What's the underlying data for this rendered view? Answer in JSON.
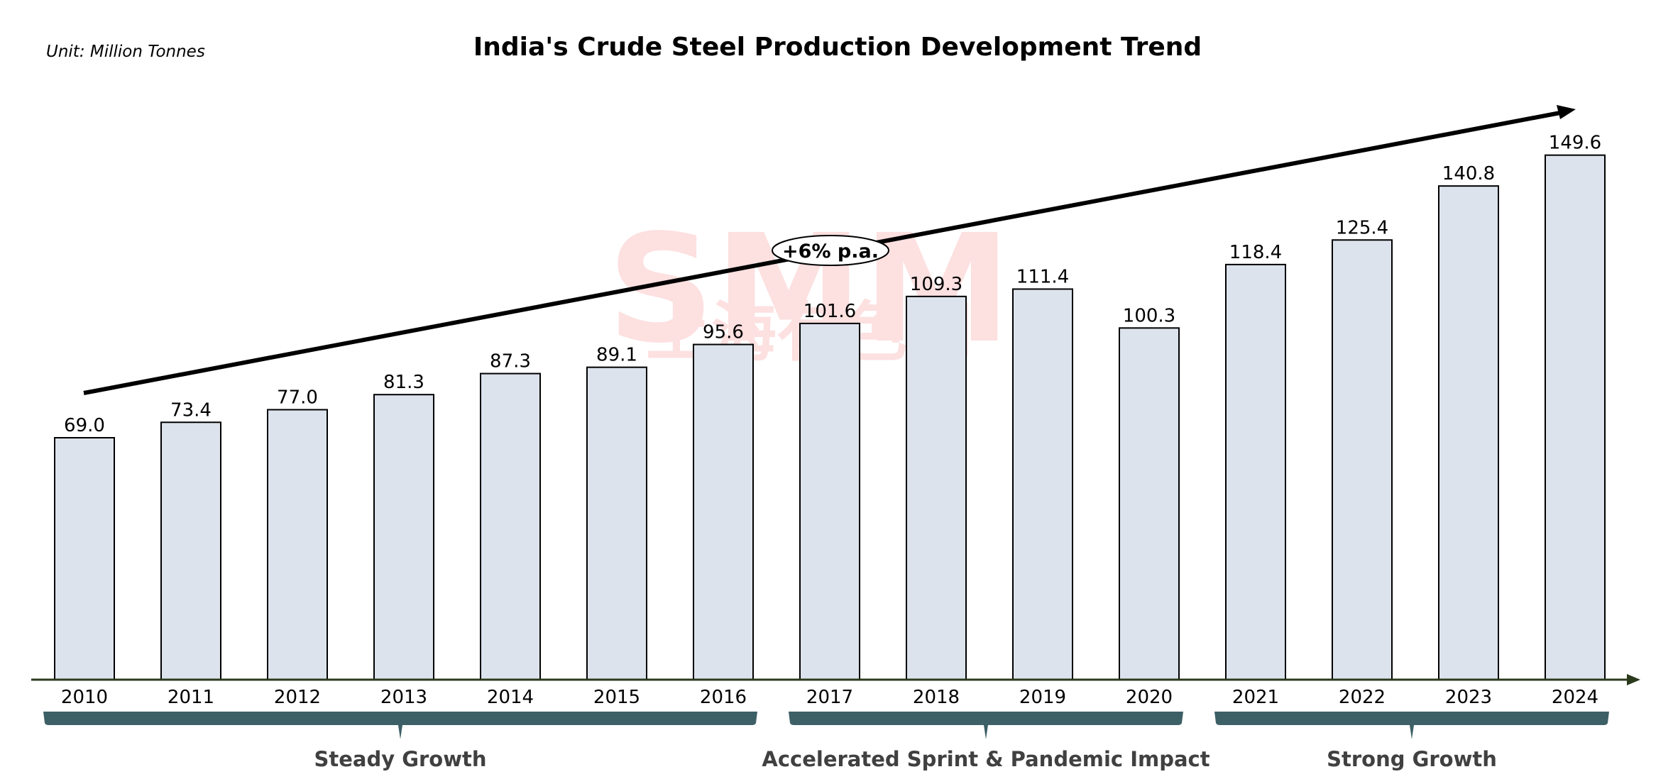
{
  "chart_data": {
    "type": "bar",
    "title": "India's Crude Steel Production Development Trend",
    "unit_label": "Unit:  Million Tonnes",
    "xlabel": "",
    "ylabel": "Million Tonnes",
    "ylim": [
      0,
      190
    ],
    "grid": false,
    "categories": [
      "2010",
      "2011",
      "2012",
      "2013",
      "2014",
      "2015",
      "2016",
      "2017",
      "2018",
      "2019",
      "2020",
      "2021",
      "2022",
      "2023",
      "2024"
    ],
    "values": [
      69.0,
      73.4,
      77.0,
      81.3,
      87.3,
      89.1,
      95.6,
      101.6,
      109.3,
      111.4,
      100.3,
      118.4,
      125.4,
      140.8,
      149.6
    ],
    "value_labels": [
      "69.0",
      "73.4",
      "77.0",
      "81.3",
      "87.3",
      "89.1",
      "95.6",
      "101.6",
      "109.3",
      "111.4",
      "100.3",
      "118.4",
      "125.4",
      "140.8",
      "149.6"
    ],
    "trend_annotation": "+6% p.a.",
    "groups": [
      {
        "label": "Steady Growth",
        "from": "2010",
        "to": "2016"
      },
      {
        "label": "Accelerated Sprint & Pandemic Impact",
        "from": "2017",
        "to": "2020"
      },
      {
        "label": "Strong Growth",
        "from": "2021",
        "to": "2024"
      }
    ],
    "watermark": {
      "mark": "SMM",
      "text": "上海有色网"
    },
    "colors": {
      "bar_fill": "#dde3ed",
      "bar_stroke": "#000000",
      "axis": "#2b3a1c",
      "band": "#3d5f66",
      "group_text": "#404040",
      "watermark": "#fde0e0"
    }
  }
}
